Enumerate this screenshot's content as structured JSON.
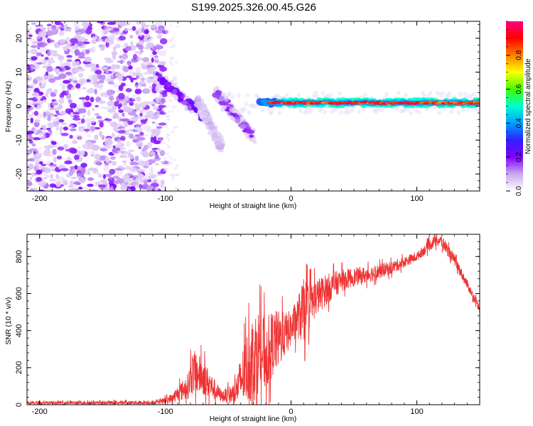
{
  "figure_title": "S199.2025.326.00.45.G26",
  "chart_data": [
    {
      "type": "heatmap",
      "xlabel": "Height of straight line (km)",
      "ylabel": "Frequency (Hz)",
      "xlim": [
        -210,
        150
      ],
      "ylim": [
        -25,
        25
      ],
      "xticks": [
        -200,
        -100,
        0,
        100
      ],
      "yticks": [
        -20,
        -10,
        0,
        10,
        20
      ],
      "colorbar": {
        "label": "Normalized spectral amplitude",
        "range": [
          0.0,
          1.0
        ],
        "ticks": [
          0.0,
          0.2,
          0.4,
          0.6,
          0.8
        ],
        "colormap": [
          "#ffffff",
          "#c8a8f0",
          "#8000ff",
          "#3020ff",
          "#00a0ff",
          "#00ffd0",
          "#40ff00",
          "#ffff00",
          "#ff8000",
          "#ff0000",
          "#ff0080"
        ]
      },
      "features": [
        {
          "name": "noise region",
          "x_range": [
            -210,
            -100
          ],
          "freq_range": [
            -25,
            25
          ],
          "amplitude_range": [
            0.05,
            0.2
          ]
        },
        {
          "name": "descending branch 1",
          "x_range": [
            -107,
            -70
          ],
          "freq_start": 9,
          "freq_end": -3,
          "amplitude": 0.2
        },
        {
          "name": "descending branch 2",
          "x_range": [
            -75,
            -55
          ],
          "freq_start": 2,
          "freq_end": -12,
          "amplitude": 0.08
        },
        {
          "name": "descending branch 3",
          "x_range": [
            -60,
            -30
          ],
          "freq_start": 4,
          "freq_end": -9,
          "amplitude": 0.15
        },
        {
          "name": "carrier line",
          "x_range": [
            -25,
            150
          ],
          "freq_center": 1,
          "amplitude": 0.95
        }
      ]
    },
    {
      "type": "line",
      "xlabel": "Height of straight line (km)",
      "ylabel": "SNR (10 * v/v)",
      "xlim": [
        -210,
        150
      ],
      "ylim": [
        0,
        920
      ],
      "xticks": [
        -200,
        -100,
        0,
        100
      ],
      "yticks": [
        0,
        200,
        400,
        600,
        800
      ],
      "line_color": "#ee3333",
      "envelope": {
        "x": [
          -210,
          -105,
          -95,
          -82,
          -78,
          -70,
          -62,
          -55,
          -45,
          -38,
          -30,
          -25,
          -20,
          -15,
          -10,
          -5,
          0,
          5,
          10,
          15,
          20,
          30,
          40,
          50,
          60,
          70,
          80,
          90,
          100,
          110,
          115,
          120,
          130,
          140,
          150
        ],
        "mean": [
          10,
          12,
          35,
          100,
          180,
          150,
          90,
          45,
          60,
          160,
          260,
          300,
          270,
          330,
          350,
          380,
          410,
          470,
          500,
          540,
          580,
          630,
          670,
          690,
          700,
          720,
          740,
          770,
          800,
          860,
          890,
          880,
          780,
          650,
          520
        ],
        "amp": [
          8,
          10,
          25,
          70,
          120,
          100,
          60,
          30,
          60,
          160,
          250,
          220,
          200,
          180,
          160,
          120,
          100,
          110,
          180,
          120,
          100,
          80,
          60,
          50,
          45,
          40,
          35,
          30,
          25,
          30,
          35,
          35,
          30,
          25,
          20
        ]
      }
    }
  ]
}
